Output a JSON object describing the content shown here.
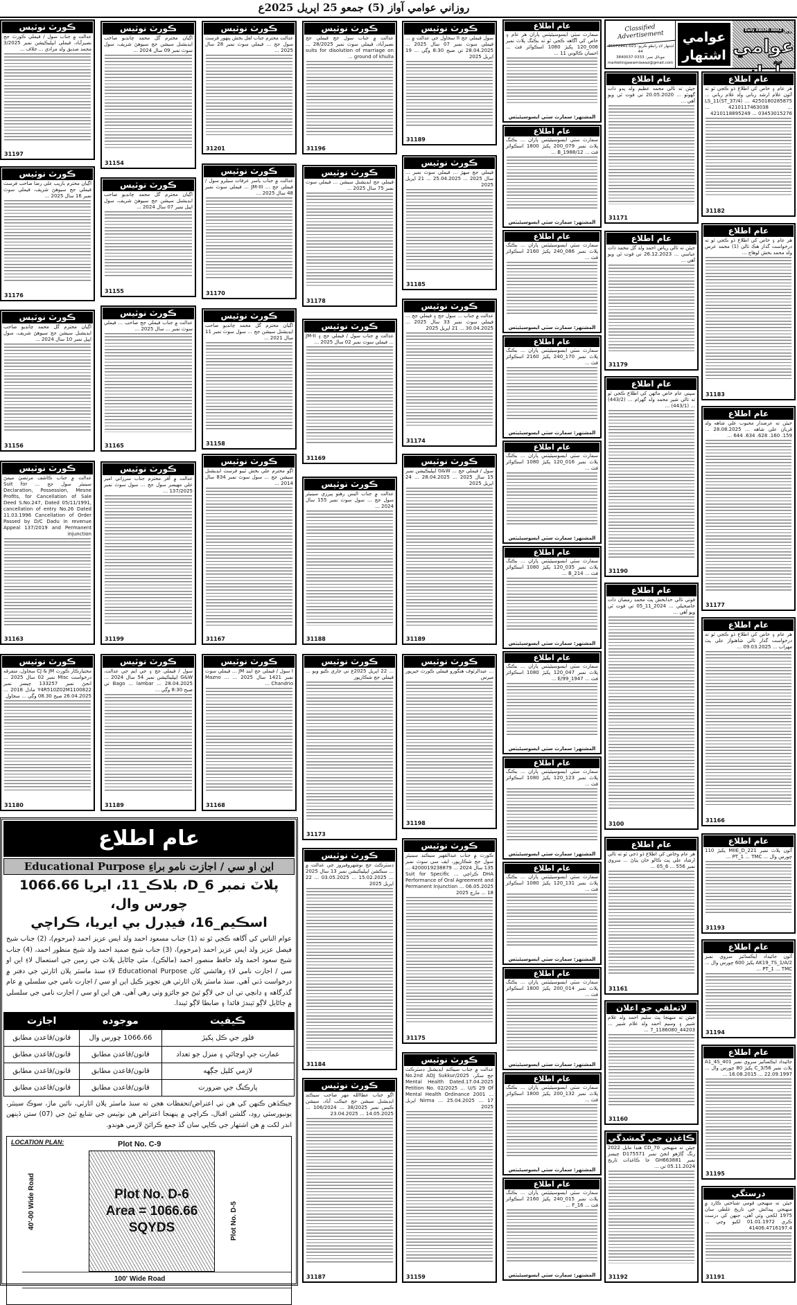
{
  "dateline": "روزاني عوامي آواز (5) جمعو 25 اپريل 2025ع",
  "masthead": {
    "daily_label": "روزاني",
    "english_name": "Daily AWAMI AWAZ",
    "paper_name": "عوامي آواز",
    "section_name": "عوامي اشتهار",
    "classified": "Classified Advertisement",
    "phone": "اشتهار لاءِ رابطو ڪريو: 021-35672941-44",
    "mobile": "موبائل نمبر: 0333-3840037",
    "email": "marketingawamiawaz@gmail.com"
  },
  "court_heading": "ڪورٽ نوٽيس",
  "public_heading": "عام اطلاع",
  "columns": [
    [
      {
        "text": "عدالت ۾ جناب سول / فيملي ڪورٽ جج نصيرآباد، فيملي ايپليڪيشن نمبر 3/2025 محمد صديق ولد مرادي ... خلاف ...",
        "id": "31197"
      },
      {
        "text": "اڳيان محترم بازيب علي رضا صاحب فرسٽ فيملي جج سيوهڻ شريف، فيملي سوٽ نمبر 16 سال 2025 ...",
        "id": "31176"
      },
      {
        "text": "اڳيان محترم گل محمد چانڊيو صاحب ايڊيشنل سيشن جج سيوهڻ شريف، سول اپيل نمبر 10 سال 2024 ...",
        "id": "31156"
      },
      {
        "text": "عدالت ۾ جناب ڪاشف مرتضيٰ ميمڻ سينيئر سول جج ... Suit for Declaration, Possession, Mesne Profits, for Cancellation of Sale Deed S.No.247, Dated 05/11/1991, cancellation of entry No.26 Dated 11.03.1996 Cancellation of Order Passed by D/C Dadu in revenue Appeal 137/2019 and Permanent injunction",
        "id": "31163"
      },
      {
        "text": "مختيارڪار ڪورٽ CJ & JM سجاول، متفرقه درخواست Misc نمبر 02 سال 2025 ... انجڻ نمبر 133257 چيسز نمبر Y4R510Z02M1100822 ماڊل 2018 ... 26.04.2025 صبح 08.30 وڳي ... سجاول",
        "id": "31180"
      }
    ],
    [
      {
        "text": "اڳيان محترم گل محمد چانڊيو صاحب ايڊيشنل سيشن جج سيوهڻ شريف، سول سوٽ نمبر 09 سال 2024 ...",
        "id": "31154"
      },
      {
        "text": "اڳيان محترم گل محمد چانڊيو صاحب ايڊيشنل سيشن جج سيوهڻ شريف، سول اپيل نمبر 07 سال 2024 ...",
        "id": "31155"
      },
      {
        "text": "عدالت ۾ جناب فيملي جج صاحب ... فيملي سوٽ نمبر ... سال 2025 ...",
        "id": "31165"
      },
      {
        "text": "عدالت ۾ آفر محترم جناب سرزاني امير علي مهيسر سول جج ... سول سوٽ نمبر 137/2025 ...",
        "id": "31199"
      },
      {
        "text": "سول / فيملي جج ۽ جي ايم جي عدالت، G&W ايپليڪيشن نمبر 54 سال 2024 ... Bago ... lambar ... 28.04.2025 تي صبح 8:30 وڳي ...",
        "id": "31189"
      }
    ],
    [
      {
        "text": "عدالت محترم جناب لعل بخش پنهور فرسٽ سول جج ... فيملي سوٽ نمبر 28 سال 2025 ...",
        "id": "31201"
      },
      {
        "text": "عدالت ۾ جناب ياسر عرفات سيلرو سول / فيملي جج ... JM-III ... فيملي سوٽ نمبر 48 سال 2025 ...",
        "id": "31170"
      },
      {
        "text": "اڳيان محترم گل محمد چانڊيو صاحب ايڊيشنل سيشن جج ... سول سوٽ نمبر 11 سال 2021 ...",
        "id": "31158"
      },
      {
        "text": "اڳو محترم علي بخش ٿيٻو فرسٽ ايڊيشنل سيشن جج ... سول سوٽ نمبر 834 سال 2014 ...",
        "id": "31167"
      },
      {
        "text": "I سول / فيملي جج اينڊ JM ... فيملي سوٽ نمبر 1421 سال 2025 ... Mazno ... Chandrio ...",
        "id": "31168"
      }
    ],
    [
      {
        "text": "عدالت ۾ جناب سول جج فيملي جج نصيرآباد، فيملي سوٽ نمبر 28/2025 ... suits for disolution of marriage on ground of khulla ...",
        "id": "31196"
      },
      {
        "text": "فيملي جج ايڊيشنل سيشن ... فيملي سوٽ نمبر 75 سال 2025 ...",
        "id": "31178"
      },
      {
        "text": "عدالت ۾ جناب سول / فيملي جج ۽ JM-II ... فيملي سوٽ نمبر 02 سال 2025 ...",
        "id": "31169"
      },
      {
        "text": "عدالت ۾ جناب اليس رهتو پيرزي سينيئر سول جج ... سول سوٽ نمبر 155 سال 2024 ...",
        "id": "31188"
      },
      {
        "text": "... 22 اپريل 2025ع تي جاري ڪيو ويو ... فيملي جج شڪارپور",
        "id": "31173"
      },
      {
        "text": "ڊسٽرڪٽ جج نوشهروفيروز جي عدالت ۾ ... سڪشن ايپليڪيشن نمبر 13 سال 2025 ... 15.02.2025 ... 03.05.2025 ... 22 اپريل 2025",
        "id": "31184"
      },
      {
        "text": "اڳو جناب عطاالله مهر صاحب سيڪنڊ ايڊيشنل سيشن جج جيڪب آباد، سيشن ڪيس نمبر 38/2025 ... 106/2024 ... 14.05.2025 ... 23.04.2025",
        "id": "31187"
      }
    ],
    [
      {
        "text": "سول فيملي جج II سجاول جي عدالت ۾ ... فيملي سوٽ نمبر 07 سال 2025 ... 28.04.2025 تي صبح 8:30 وڳي ... 19 اپريل 2025",
        "id": "31189"
      },
      {
        "text": "فيملي جج ميهڙ ... فيملي سوٽ نمبر ... سال 2025 ... 25.04.2025 ... 21 اپريل 2025",
        "id": "31185"
      },
      {
        "text": "عدالت ۾ جناب ... سول جج ۽ فيملي جج ... فيملي سوٽ نمبر 33 سال 2025 ... 30.04.2025 ... 21 اپريل 2025",
        "id": "31174"
      },
      {
        "text": "سول / فيملي جج ... G&W ايپليڪيشن نمبر 15 سال 2025 ... 28.04.2025 ... 24 اپريل 2025",
        "id": "31189"
      },
      {
        "text": "... عبدالرئوف هنگورو فيملي ڪورٽ خيرپور ميرس",
        "id": "31198"
      },
      {
        "text": "ڪورٽ ۾ جناب عبدالقهير سيڪنڊ سينيئر سول جج شڪارپور، ايف سي سوٽ نمبر 135 سال 2024 ... 4200019238879 ... DHA ڪراچي ... Suit for Specific Performance of Oral Agreement and Permanent Injunction ... 06.05.2025 ... 18 مارچ 2025",
        "id": "31175"
      },
      {
        "text": "عدالت ۾ جناب سيڪنڊ ايڊيشنل ڊسٽرڪٽ جج سکر، No.2nd ADJ Sukkur/2025 Mental Health Dated.17.04.2025 Petition No. 02/2025 ... U/S 29 Of Mental Health Ordinance 2001 ... Nirma ... 25.04.2025 ... 17 اپريل 2025",
        "id": "31159"
      }
    ]
  ],
  "smart_city": {
    "signature": "المشتهر: سمارٽ سٽي ايسوسيئيٽس",
    "ads": [
      "سمارٽ سٽي ايسوسيئيٽس پاران هر عام ۽ خاص کي آگاهه ڪجي ٿو ته بڪنگ پلاٽ نمبر 006_120 پکيڙ 1080 اسڪوائر فٽ ... احسان ڪالوني 11 ...",
      "سمارٽ سٽي ايسوسيئيٽس پاران ... بڪنگ پلاٽ نمبر 079_200 پکيڙ 1800 اسڪوائر فٽ ... 1988/12_B ...",
      "سمارٽ سٽي ايسوسيئيٽس پاران ... بڪنگ پلاٽ نمبر 086_240 پکيڙ 2160 اسڪوائر فٽ ...",
      "سمارٽ سٽي ايسوسيئيٽس پاران ... بڪنگ پلاٽ نمبر 170_240 پکيڙ 2160 اسڪوائر فٽ ...",
      "سمارٽ سٽي ايسوسيئيٽس پاران ... بڪنگ پلاٽ نمبر 016_120 پکيڙ 1080 اسڪوائر فٽ ...",
      "سمارٽ سٽي ايسوسيئيٽس پاران ... بڪنگ پلاٽ نمبر 035_120 پکيڙ 1080 اسڪوائر فٽ ... B_214 ...",
      "سمارٽ سٽي ايسوسيئيٽس پاران ... بڪنگ پلاٽ نمبر 047_120 پکيڙ 1080 اسڪوائر فٽ ... 1947_99/E ...",
      "سمارٽ سٽي ايسوسيئيٽس پاران ... بڪنگ پلاٽ نمبر 123_120 پکيڙ 1080 اسڪوائر فٽ ...",
      "سمارٽ سٽي ايسوسيئيٽس پاران ... بڪنگ پلاٽ نمبر 131_120 پکيڙ 1080 اسڪوائر فٽ ...",
      "سمارٽ سٽي ايسوسيئيٽس پاران ... بڪنگ پلاٽ نمبر 014_200 پکيڙ 1800 اسڪوائر فٽ ...",
      "سمارٽ سٽي ايسوسيئيٽس پاران ... بڪنگ پلاٽ نمبر 132_200 پکيڙ 1800 اسڪوائر فٽ ...",
      "سمارٽ سٽي ايسوسيئيٽس پاران ... بڪنگ پلاٽ نمبر 015_240 پکيڙ 2160 اسڪوائر فٽ ... F_16 ..."
    ]
  },
  "right_columns": [
    [
      {
        "heading": "عام اطلاع",
        "text": "جيئن ته تالي محمد عظيم ولد پدو ذات گهوٽو ... 20.05.2020 تي فوت ٿي ويو آهي ...",
        "id": "31171"
      },
      {
        "heading": "عام اطلاع",
        "text": "جيئن ته تالي رياض احمد ولد گل محمد ذات عباسي ... 26.12.2023 تي فوت ٿي ويو آهي ...",
        "id": "31179"
      },
      {
        "heading": "عام اطلاع",
        "text": "سڀني عام خاص ماڻهن کي اطلاع ڪجي ٿو ته تالي شير محمد ولد گهرام ... (443/2) ... (443/1) ...",
        "id": "31190"
      },
      {
        "heading": "عام اطلاع",
        "text": "فوتي تالي خدابخش پٽ محمد رمضان ذات خاصخيلي ... 2024_11_05 تي فوت ٿي ويو آهي ...",
        "id": "3100"
      },
      {
        "heading": "عام اطلاع",
        "text": "هر عام وخاص کي اطلاع ڏو ڏجي ٿو ته تالي ارشاد علي پٽ ڪالو خان پٺاڻ ... سروي نمبر 556 ... 6_05 ...",
        "id": "31161"
      },
      {
        "heading": "لاتعلقي جو اعلان",
        "text": "جيئن ته منهنجا پٽ سليم احمد ولد غلام شبير ۽ وسيم احمد ولد غلام شبير ... 44203_1186080_7 ...",
        "id": "31160"
      },
      {
        "heading": "ڪاغذن جي گمشدگي",
        "text": "جيئن ته منهنجي CD_70 هنڊا مايل 2022 رنگ ڳاڙهو انجڻ نمبر D175571 چيسز نمبر GH663881 جا ڪاغذات تاريخ 05.11.2024 تي ...",
        "id": "31192"
      }
    ],
    [
      {
        "heading": "عام اطلاع",
        "text": "هر عام ۽ خاص کي اطلاع ڏو ڪجي ٿو ته آئون غلام ارشد رباني ولد غلام رباني ... 4250180285875 ... LS_11(ST_37/4) ... 4210117463038 ... 4210118895249 ... 03453015276",
        "id": "31182"
      },
      {
        "heading": "عام اطلاع",
        "text": "هر عام ۽ خاص کي اطلاع ڏو ڪجي ٿو ته درخواست گذار هڪ تالي (1) محمد عرس ولد محمد بخش لوهاڄ ...",
        "id": "31183"
      },
      {
        "heading": "عام اطلاع",
        "text": "جيئن ته عرضدار محبوب علي شاهه ولد قربان علي شاهه ... 28.08.2025 ... 159. 160. 628. 634. 644 ...",
        "id": "31177"
      },
      {
        "heading": "عام اطلاع",
        "text": "هر عام ۽ خاص کي اطلاع ڏو ڪجي ٿو ته درخواست گذار تالي شاهنواز علي پٽ مهراب ... 09.03.2025 ...",
        "id": "31166"
      },
      {
        "heading": "عام اطلاع",
        "text": "آئون پلاٽ نمبر MIIE_D_221 پکيڙ 110 چورس وال ... PT_1 ... TMC ...",
        "id": "31193"
      },
      {
        "heading": "عام اطلاع",
        "text": "آئون جائيداد ايڪسائيز سروي نمبر AK19_7S_1/A/2 پکيڙ 600 چورس وال ... PT_1 ... TMC ...",
        "id": "31194"
      },
      {
        "heading": "عام اطلاع",
        "text": "جائيداد ايڪسائيز سروي نمبر A1_4S_401 پلاٽ نمبر C_3/56 پکيڙ 80 چورس وال ... 22.09.1997 ... 16.08.2015 ...",
        "id": "31195"
      },
      {
        "heading": "درستگي",
        "text": "جيئن ته منهنجي قومي شناختي ڪارڊ ۾ منهنجي پيدائش جي تاريخ غلطي سان 1975 لکجي وئي آهي، جنهن کي درست ڪري 01.01.1972 لکيو وڃي ... 41406.4716197.4",
        "id": "31191"
      }
    ]
  ],
  "big_notice": {
    "title": "عام اطلاع",
    "subtitle": "اين او سي / اجازت نامو براءِ Educational Purpose",
    "plot_line1": "پلاٽ نمبر D_6، بلاڪ_11، ايريا 1066.66 چورس وال،",
    "plot_line2": "اسڪيم_16، فيڊرل بي ايريا، ڪراچي",
    "body": "عوام الناس کي آگاهه ڪجي ٿو ته (1) جناب مسعود احمد ولد ايس عزيز احمد (مرحوم)، (2) جناب شيخ فيصل عزيز ولد ايس عزيز احمد (مرحوم)، (3) جناب شيخ صميد احمد ولد شيخ منظور احمد، (4) جناب شيخ سعود احمد ولد حافظ منصور احمد (مالڪن). مٿي ڄاڻايل پلاٽ جي زمين جي استعمال لاءِ اين او سي / اجازت نامي لاءِ رهائشي کان Educational Purpose لاءِ سنڌ ماسٽر پلان اٿارٽي جي دفتر ۾ درخواست ڏني آهي. سنڌ ماسٽر پلان اٿارٽي هن تجويز ڪيل اين او سي / اجازت نامي جي سلسلي ۾ عام گذرگاهه ۽ ڍانچي تي ان جي لاڳو ٿيڻ جو جائزو وٺي رهي آهي. هن اين او سي / اجازت نامي جي سلسلي ۾ ڄاڻايل لاڳو ٿيندڙ قائدا ۽ ضابطا لاڳو ٿيندا.",
    "table": {
      "headers": [
        "ڪيفيت",
        "موجوده",
        "اجازت"
      ],
      "rows": [
        [
          "فلور جي ڪل پکيڙ",
          "1066.66 چورس وال",
          "قانون/قاعدن مطابق"
        ],
        [
          "عمارت جي اوچائي ۽ منزل جو تعداد",
          "قانون/قاعدن مطابق",
          "قانون/قاعدن مطابق"
        ],
        [
          "لازمي کليل جڳهه",
          "قانون/قاعدن مطابق",
          "قانون/قاعدن مطابق"
        ],
        [
          "پارڪنگ جي ضرورت",
          "قانون/قاعدن مطابق",
          "قانون/قاعدن مطابق"
        ]
      ]
    },
    "closing": "جيڪڏهن ڪنهن کي هن تي اعتراض/تحفظات هجن ته سنڌ ماسٽر پلان اٿارٽي، نائين ماڙ، سوڪ سينٽر، يونيورسٽي روڊ، گلشن اقبال، ڪراچي ۾ پنهنجا اعتراض هن نوٽيس جي شايع ٿيڻ جي (07) ستن ڏينهن اندر لکت ۾ هن اشتهار جي ڪاپي سان گڏ جمع ڪرائڻ لازمي هوندو.",
    "plan": {
      "label": "LOCATION PLAN:",
      "north_plot": "Plot No. C-9",
      "plot": "Plot No. D-6",
      "area": "Area = 1066.66",
      "unit": "SQYDS",
      "left_road": "40'-00 Wide Road",
      "east_plot": "Plot No. D-5",
      "front_road": "100' Wide Road"
    }
  }
}
